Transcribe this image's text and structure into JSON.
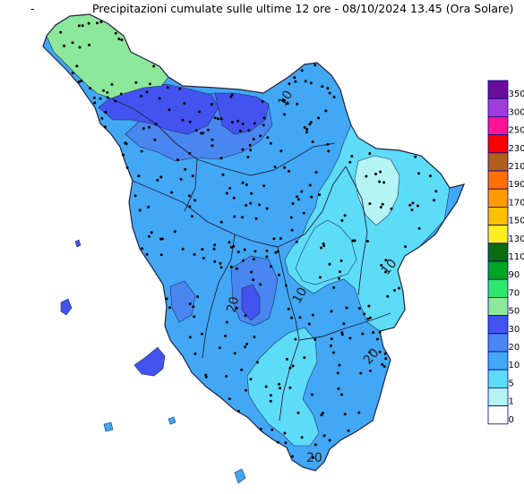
{
  "title": {
    "dash": "-",
    "text": "Precipitazioni cumulate sulle ultime 12 ore - 08/10/2024 13.45 (Ora Solare)"
  },
  "legend": {
    "classes": [
      {
        "label": "350",
        "color": "#6a0d9a"
      },
      {
        "label": "300",
        "color": "#a03cdc"
      },
      {
        "label": "250",
        "color": "#ff1493"
      },
      {
        "label": "230",
        "color": "#ff0000"
      },
      {
        "label": "210",
        "color": "#b0601c"
      },
      {
        "label": "190",
        "color": "#ff7000"
      },
      {
        "label": "170",
        "color": "#ff9a00"
      },
      {
        "label": "150",
        "color": "#ffc000"
      },
      {
        "label": "130",
        "color": "#ffee22"
      },
      {
        "label": "110",
        "color": "#0d6a0d"
      },
      {
        "label": "90",
        "color": "#00a520"
      },
      {
        "label": "70",
        "color": "#2ee86a"
      },
      {
        "label": "50",
        "color": "#8ce89a"
      },
      {
        "label": "30",
        "color": "#4353f0"
      },
      {
        "label": "20",
        "color": "#4a86f0"
      },
      {
        "label": "10",
        "color": "#42a8f5"
      },
      {
        "label": "5",
        "color": "#5ddcf8"
      },
      {
        "label": "1",
        "color": "#b4f4f4"
      },
      {
        "label": "0",
        "color": "#ffffff"
      }
    ]
  },
  "map": {
    "colors": {
      "c1": "#b4f4f4",
      "c5": "#5ddcf8",
      "c10": "#42a8f5",
      "c20": "#4a86f0",
      "c30": "#4353f0",
      "c50": "#8ce89a",
      "border": "#202040"
    },
    "contour_labels": [
      "10",
      "20",
      "10",
      "20",
      "10",
      "20"
    ]
  }
}
